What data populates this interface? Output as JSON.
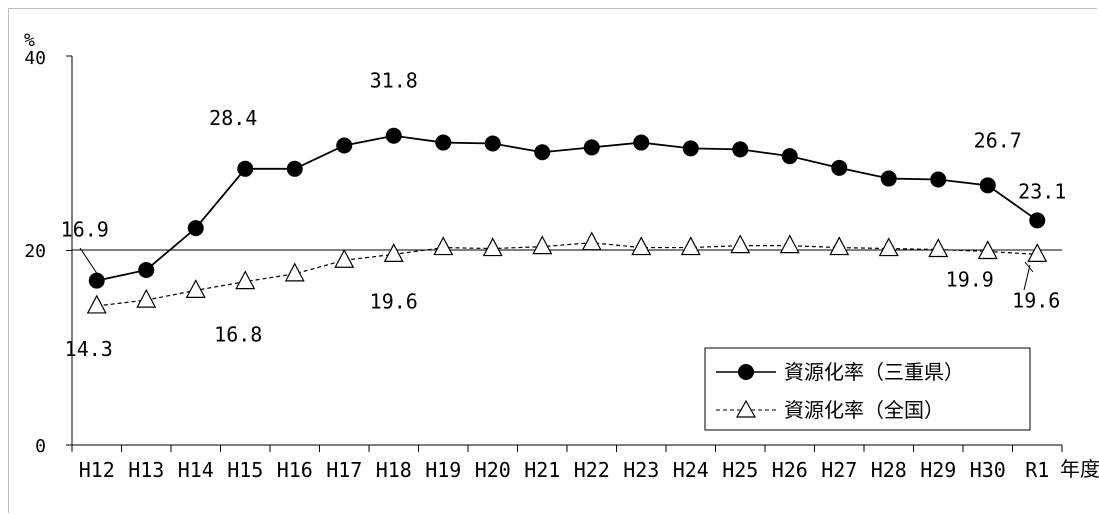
{
  "chart_data": {
    "type": "line",
    "title": "",
    "xlabel": "年度",
    "ylabel": "%",
    "ylim": [
      0,
      40
    ],
    "yticks": [
      "0",
      "20",
      "40"
    ],
    "categories": [
      "H12",
      "H13",
      "H14",
      "H15",
      "H16",
      "H17",
      "H18",
      "H19",
      "H20",
      "H21",
      "H22",
      "H23",
      "H24",
      "H25",
      "H26",
      "H27",
      "H28",
      "H29",
      "H30",
      "R1"
    ],
    "series": [
      {
        "name": "資源化率（三重県）",
        "marker": "filled-circle",
        "line": "solid",
        "color": "#000000",
        "values": [
          16.9,
          18.0,
          22.3,
          28.4,
          28.4,
          30.8,
          31.8,
          31.1,
          31.0,
          30.1,
          30.6,
          31.1,
          30.5,
          30.4,
          29.7,
          28.5,
          27.4,
          27.3,
          26.7,
          23.1
        ],
        "data_labels": [
          {
            "index": 0,
            "text": "16.9"
          },
          {
            "index": 3,
            "text": "28.4"
          },
          {
            "index": 6,
            "text": "31.8"
          },
          {
            "index": 18,
            "text": "26.7"
          },
          {
            "index": 19,
            "text": "23.1"
          }
        ]
      },
      {
        "name": "資源化率（全国）",
        "marker": "open-triangle",
        "line": "dashed",
        "color": "#000000",
        "values": [
          14.3,
          14.9,
          15.9,
          16.8,
          17.6,
          19.0,
          19.6,
          20.3,
          20.2,
          20.4,
          20.8,
          20.3,
          20.3,
          20.5,
          20.5,
          20.3,
          20.2,
          20.1,
          19.9,
          19.6
        ],
        "data_labels": [
          {
            "index": 0,
            "text": "14.3"
          },
          {
            "index": 3,
            "text": "16.8"
          },
          {
            "index": 6,
            "text": "19.6"
          },
          {
            "index": 18,
            "text": "19.9"
          },
          {
            "index": 19,
            "text": "19.6"
          }
        ]
      }
    ],
    "grid": {
      "horizontal_line_at": 20
    },
    "legend": {
      "position": "bottom-right"
    }
  }
}
